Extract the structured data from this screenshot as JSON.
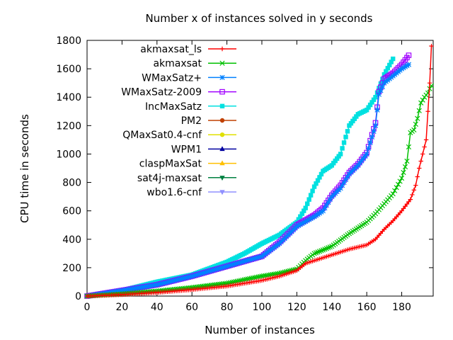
{
  "chart_data": {
    "type": "line",
    "title": "Number x of instances solved in y seconds",
    "xlabel": "Number of instances",
    "ylabel": "CPU time in seconds",
    "xlim": [
      0,
      198
    ],
    "ylim": [
      0,
      1800
    ],
    "xticks": [
      0,
      20,
      40,
      60,
      80,
      100,
      120,
      140,
      160,
      180
    ],
    "yticks": [
      0,
      200,
      400,
      600,
      800,
      1000,
      1200,
      1400,
      1600,
      1800
    ],
    "grid": false,
    "legend_position": "top-left",
    "series": [
      {
        "name": "akmaxsat_ls",
        "color": "#ff0000",
        "marker": "plus",
        "x": [
          0,
          20,
          40,
          60,
          80,
          100,
          110,
          120,
          125,
          130,
          140,
          150,
          160,
          165,
          170,
          175,
          180,
          185,
          188,
          190,
          192,
          194,
          195,
          196,
          197
        ],
        "y": [
          0,
          10,
          25,
          45,
          70,
          110,
          140,
          180,
          230,
          250,
          290,
          330,
          360,
          400,
          470,
          530,
          600,
          680,
          780,
          900,
          1000,
          1100,
          1300,
          1500,
          1760
        ]
      },
      {
        "name": "akmaxsat",
        "color": "#00c000",
        "marker": "cross",
        "x": [
          0,
          20,
          40,
          60,
          80,
          100,
          110,
          120,
          125,
          130,
          140,
          150,
          155,
          160,
          165,
          170,
          175,
          180,
          183,
          185,
          187,
          189,
          191,
          193,
          195,
          196,
          197
        ],
        "y": [
          0,
          15,
          35,
          60,
          90,
          140,
          160,
          190,
          250,
          300,
          350,
          440,
          480,
          520,
          580,
          650,
          720,
          830,
          950,
          1150,
          1170,
          1250,
          1360,
          1400,
          1430,
          1460,
          1480
        ]
      },
      {
        "name": "WMaxSatz+",
        "color": "#0080ff",
        "marker": "star",
        "x": [
          0,
          20,
          40,
          60,
          80,
          100,
          110,
          120,
          130,
          135,
          140,
          145,
          150,
          155,
          160,
          165,
          167,
          170,
          175,
          180,
          184
        ],
        "y": [
          0,
          40,
          80,
          140,
          210,
          280,
          370,
          490,
          560,
          600,
          700,
          760,
          860,
          920,
          1000,
          1200,
          1420,
          1500,
          1550,
          1600,
          1630
        ]
      },
      {
        "name": "WMaxSatz-2009",
        "color": "#a000ff",
        "marker": "box",
        "x": [
          0,
          20,
          40,
          60,
          80,
          100,
          110,
          120,
          130,
          135,
          140,
          145,
          150,
          155,
          160,
          165,
          167,
          170,
          175,
          180,
          184
        ],
        "y": [
          0,
          40,
          80,
          140,
          210,
          280,
          380,
          500,
          570,
          620,
          710,
          780,
          870,
          930,
          1010,
          1220,
          1440,
          1530,
          1570,
          1630,
          1695
        ]
      },
      {
        "name": "IncMaxSatz",
        "color": "#00e0e0",
        "marker": "fbox",
        "x": [
          0,
          20,
          30,
          40,
          60,
          80,
          90,
          100,
          110,
          120,
          125,
          130,
          135,
          140,
          145,
          150,
          155,
          160,
          165,
          170,
          175
        ],
        "y": [
          0,
          40,
          70,
          100,
          150,
          240,
          300,
          370,
          430,
          520,
          620,
          770,
          880,
          920,
          1000,
          1200,
          1280,
          1310,
          1400,
          1560,
          1670
        ]
      },
      {
        "name": "PM2",
        "color": "#c04000",
        "marker": "fcircle",
        "x": [],
        "y": []
      },
      {
        "name": "QMaxSat0.4-cnf",
        "color": "#e0e000",
        "marker": "fcircle",
        "x": [],
        "y": []
      },
      {
        "name": "WPM1",
        "color": "#0000a0",
        "marker": "ftriangle",
        "x": [],
        "y": []
      },
      {
        "name": "claspMaxSat",
        "color": "#ffc000",
        "marker": "ftriangle",
        "x": [],
        "y": []
      },
      {
        "name": "sat4j-maxsat",
        "color": "#008040",
        "marker": "fdtriangle",
        "x": [],
        "y": []
      },
      {
        "name": "wbo1.6-cnf",
        "color": "#9090ff",
        "marker": "fdtriangle",
        "x": [],
        "y": []
      }
    ]
  }
}
